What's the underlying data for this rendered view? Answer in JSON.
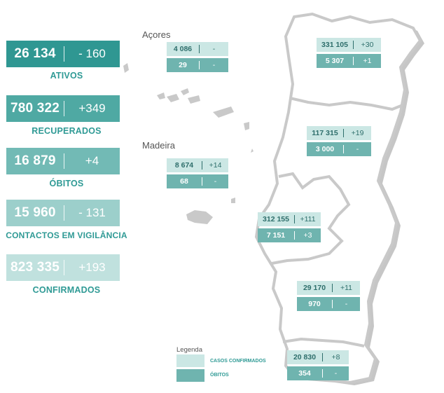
{
  "national": [
    {
      "value": "26 134",
      "delta": "- 160",
      "label": "ATIVOS",
      "color": "#2f9792"
    },
    {
      "value": "780 322",
      "delta": "+349",
      "label": "RECUPERADOS",
      "color": "#4fa9a3"
    },
    {
      "value": "16 879",
      "delta": "+4",
      "label": "ÓBITOS",
      "color": "#72bab5"
    },
    {
      "value": "15 960",
      "delta": "- 131",
      "label": "CONTACTOS EM VIGILÂNCIA",
      "color": "#9ccfcb"
    },
    {
      "value": "823 335",
      "delta": "+193",
      "label": "CONFIRMADOS",
      "color": "#c0e1de"
    }
  ],
  "islands": {
    "acores": "Açores",
    "madeira": "Madeira"
  },
  "regions": [
    {
      "id": "acores",
      "confirmed": "4 086",
      "confirmed_delta": "-",
      "deaths": "29",
      "deaths_delta": "-"
    },
    {
      "id": "madeira",
      "confirmed": "8 674",
      "confirmed_delta": "+14",
      "deaths": "68",
      "deaths_delta": "-"
    },
    {
      "id": "norte",
      "confirmed": "331 105",
      "confirmed_delta": "+30",
      "deaths": "5 307",
      "deaths_delta": "+1"
    },
    {
      "id": "centro",
      "confirmed": "117 315",
      "confirmed_delta": "+19",
      "deaths": "3 000",
      "deaths_delta": "-"
    },
    {
      "id": "lisboa",
      "confirmed": "312 155",
      "confirmed_delta": "+111",
      "deaths": "7 151",
      "deaths_delta": "+3"
    },
    {
      "id": "alentejo",
      "confirmed": "29 170",
      "confirmed_delta": "+11",
      "deaths": "970",
      "deaths_delta": "-"
    },
    {
      "id": "algarve",
      "confirmed": "20 830",
      "confirmed_delta": "+8",
      "deaths": "354",
      "deaths_delta": "-"
    }
  ],
  "legend": {
    "title": "Legenda",
    "confirmed": "CASOS CONFIRMADOS",
    "deaths": "ÓBITOS"
  },
  "colors": {
    "confirmed_box": "#cbe7e4",
    "deaths_box": "#6fb4af",
    "map_border": "#c9c9c9",
    "label_text": "#2f9a95"
  }
}
